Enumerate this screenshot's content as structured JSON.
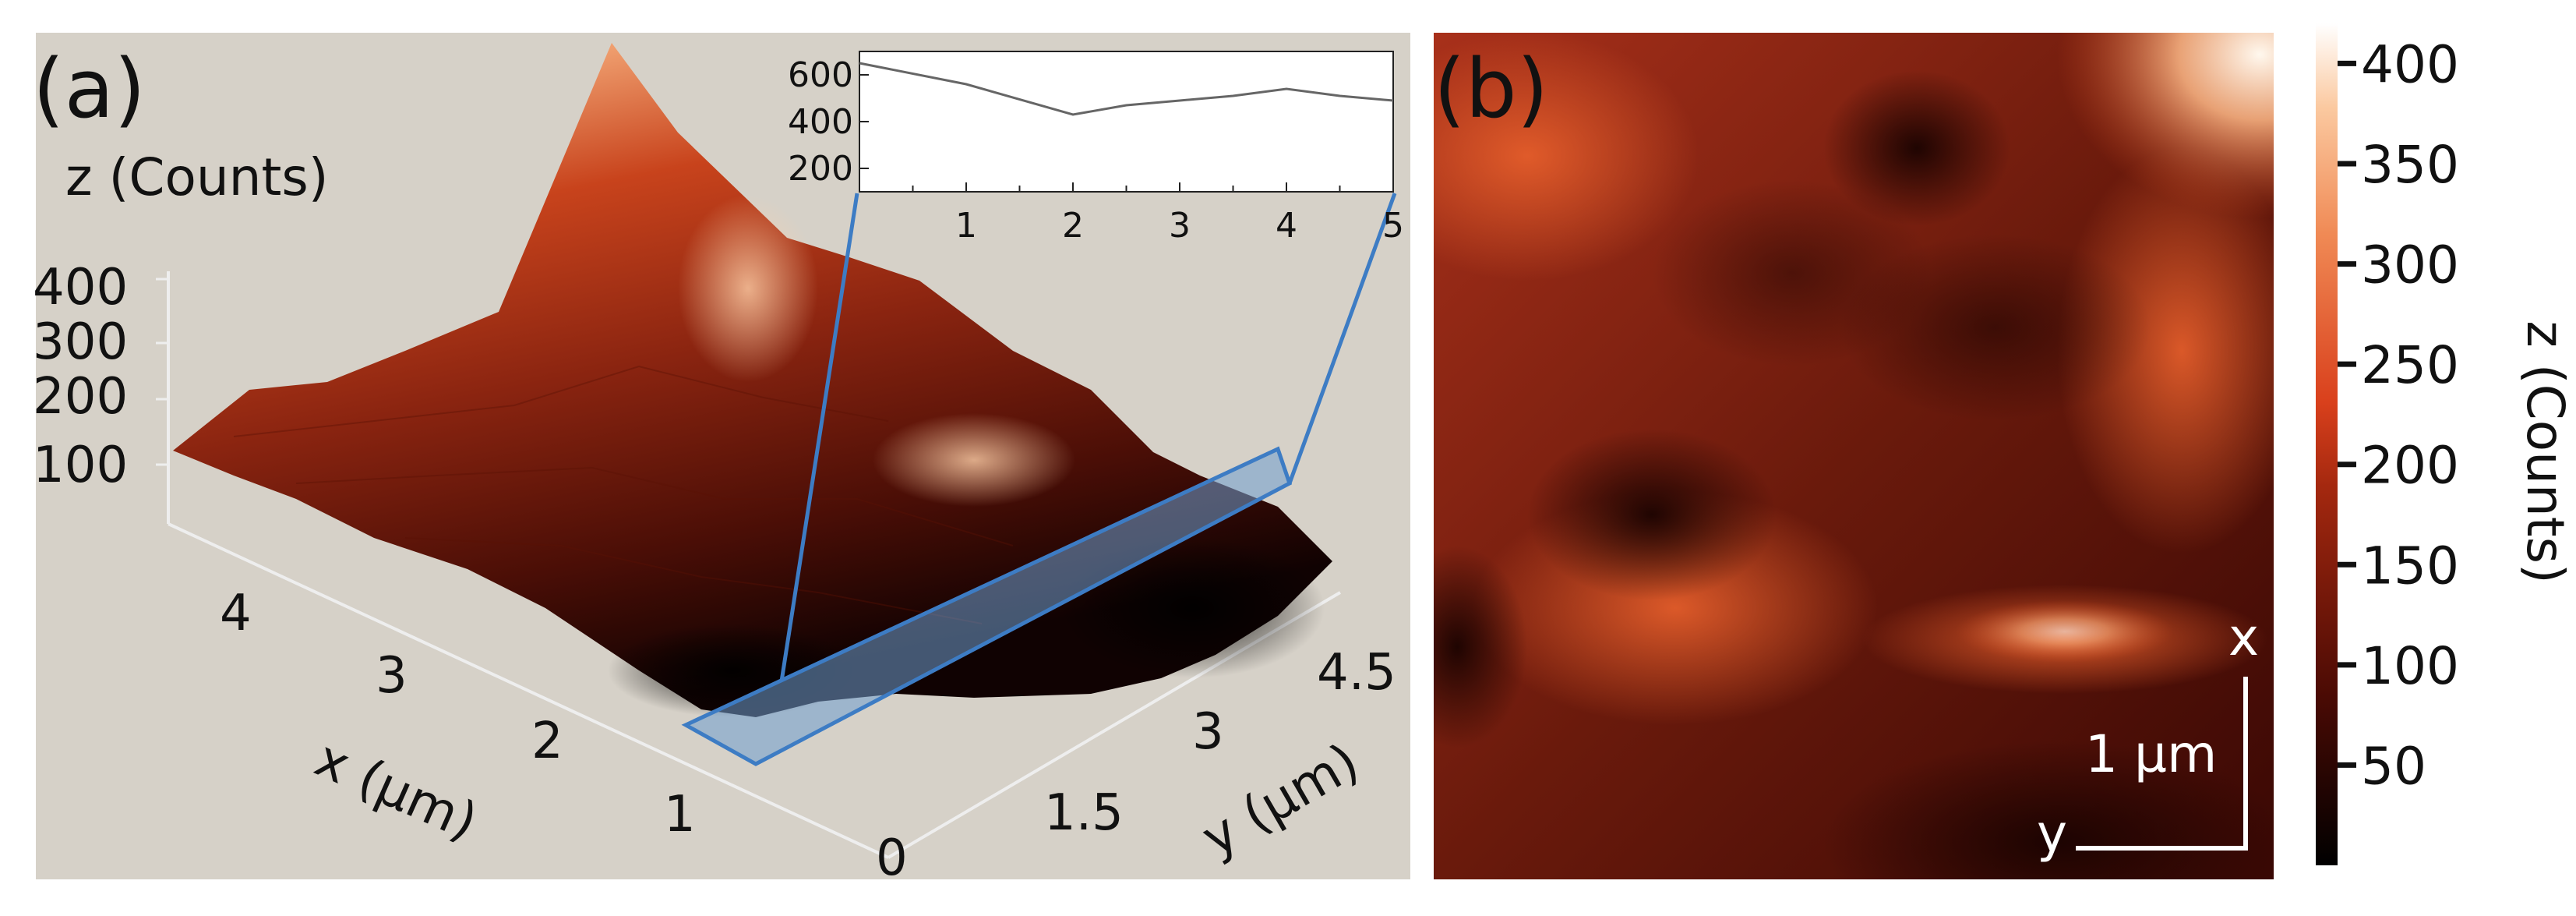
{
  "panel_a": {
    "label": "(a)",
    "z_axis_label": "z (Counts)",
    "z_ticks": [
      "400",
      "300",
      "200",
      "100"
    ],
    "x_axis_label": "x (µm)",
    "x_ticks": [
      "4",
      "3",
      "2",
      "1"
    ],
    "y_axis_label": "y (µm)",
    "y_ticks": [
      "0",
      "1.5",
      "3",
      "4.5"
    ]
  },
  "panel_b": {
    "label": "(b)",
    "scale_bar_label": "1 µm",
    "x_dir_label": "x",
    "y_dir_label": "y"
  },
  "colorbar": {
    "label": "z (Counts)",
    "ticks": [
      "400",
      "350",
      "300",
      "250",
      "200",
      "150",
      "100",
      "50"
    ],
    "range": [
      0,
      420
    ]
  },
  "chart_data": [
    {
      "type": "surface",
      "panel": "(a)",
      "zlabel": "z (Counts)",
      "xlabel": "x (µm)",
      "ylabel": "y (µm)",
      "zlim": [
        0,
        400
      ],
      "description_colors": {
        "low": "#000000",
        "mid": "#c0301a",
        "high": "#ffffff"
      }
    },
    {
      "type": "line",
      "panel": "(a) inset",
      "x": [
        0,
        1,
        2,
        2.5,
        3,
        3.5,
        4,
        4.5,
        5
      ],
      "y": [
        650,
        560,
        430,
        470,
        490,
        510,
        540,
        510,
        490
      ],
      "x_ticks": [
        "1",
        "2",
        "3",
        "4",
        "5"
      ],
      "y_ticks": [
        "600",
        "400",
        "200"
      ],
      "ylim": [
        100,
        700
      ],
      "xlim": [
        0,
        5
      ],
      "line_color": "#666666"
    },
    {
      "type": "heatmap",
      "panel": "(b)",
      "zlabel": "z (Counts)",
      "zlim": [
        0,
        420
      ],
      "colormap": [
        "#000000",
        "#5a0c05",
        "#a82a12",
        "#e05a2a",
        "#f7a06a",
        "#ffffff"
      ]
    }
  ]
}
